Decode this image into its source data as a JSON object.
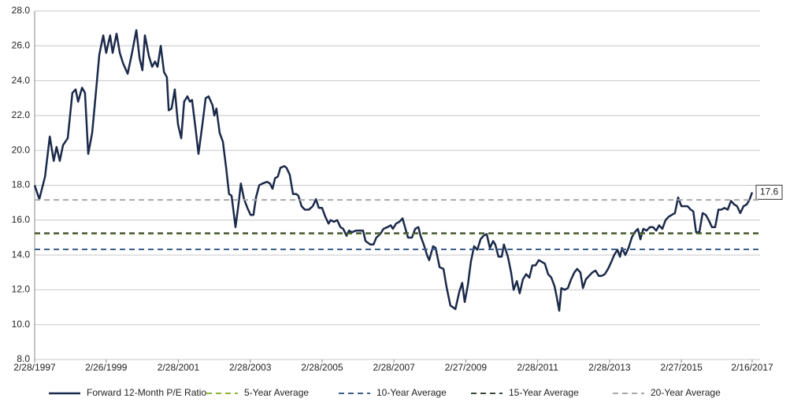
{
  "chart_data": {
    "type": "line",
    "x": [
      1997.16,
      1997.29,
      1997.45,
      1997.58,
      1997.69,
      1997.77,
      1997.86,
      1997.95,
      1998.08,
      1998.21,
      1998.3,
      1998.37,
      1998.48,
      1998.56,
      1998.65,
      1998.76,
      1998.85,
      1998.96,
      1999.07,
      1999.15,
      1999.26,
      1999.33,
      1999.44,
      1999.53,
      1999.62,
      1999.75,
      1999.86,
      1999.99,
      2000.08,
      2000.16,
      2000.23,
      2000.34,
      2000.43,
      2000.51,
      2000.58,
      2000.67,
      2000.76,
      2000.84,
      2000.89,
      2000.97,
      2001.06,
      2001.15,
      2001.24,
      2001.32,
      2001.41,
      2001.48,
      2001.54,
      2001.63,
      2001.72,
      2001.83,
      2001.92,
      2002.0,
      2002.11,
      2002.16,
      2002.22,
      2002.31,
      2002.4,
      2002.49,
      2002.57,
      2002.64,
      2002.75,
      2002.84,
      2002.9,
      2002.99,
      2003.08,
      2003.17,
      2003.25,
      2003.32,
      2003.41,
      2003.5,
      2003.63,
      2003.71,
      2003.78,
      2003.85,
      2003.93,
      2004.0,
      2004.11,
      2004.17,
      2004.26,
      2004.35,
      2004.44,
      2004.5,
      2004.59,
      2004.68,
      2004.79,
      2004.9,
      2004.99,
      2005.07,
      2005.16,
      2005.25,
      2005.34,
      2005.4,
      2005.49,
      2005.58,
      2005.67,
      2005.75,
      2005.84,
      2005.91,
      2005.99,
      2006.1,
      2006.19,
      2006.3,
      2006.37,
      2006.5,
      2006.59,
      2006.67,
      2006.78,
      2006.87,
      2006.98,
      2007.07,
      2007.13,
      2007.22,
      2007.31,
      2007.4,
      2007.48,
      2007.55,
      2007.66,
      2007.75,
      2007.84,
      2007.9,
      2007.99,
      2008.08,
      2008.14,
      2008.25,
      2008.32,
      2008.43,
      2008.54,
      2008.62,
      2008.73,
      2008.87,
      2008.98,
      2009.06,
      2009.13,
      2009.22,
      2009.3,
      2009.39,
      2009.48,
      2009.57,
      2009.65,
      2009.74,
      2009.83,
      2009.92,
      2009.98,
      2010.07,
      2010.16,
      2010.22,
      2010.33,
      2010.42,
      2010.49,
      2010.58,
      2010.66,
      2010.75,
      2010.84,
      2010.93,
      2011.01,
      2011.1,
      2011.19,
      2011.28,
      2011.36,
      2011.45,
      2011.54,
      2011.63,
      2011.69,
      2011.76,
      2011.82,
      2011.91,
      2012.0,
      2012.09,
      2012.18,
      2012.26,
      2012.35,
      2012.42,
      2012.5,
      2012.59,
      2012.68,
      2012.77,
      2012.86,
      2012.94,
      2013.03,
      2013.12,
      2013.21,
      2013.29,
      2013.38,
      2013.45,
      2013.51,
      2013.6,
      2013.69,
      2013.78,
      2013.86,
      2013.95,
      2014.02,
      2014.1,
      2014.19,
      2014.28,
      2014.37,
      2014.46,
      2014.54,
      2014.63,
      2014.72,
      2014.81,
      2014.89,
      2014.98,
      2015.07,
      2015.16,
      2015.24,
      2015.33,
      2015.42,
      2015.49,
      2015.57,
      2015.66,
      2015.75,
      2015.84,
      2015.92,
      2016.01,
      2016.1,
      2016.19,
      2016.27,
      2016.36,
      2016.45,
      2016.54,
      2016.63,
      2016.71,
      2016.8,
      2016.89,
      2016.98,
      2017.06,
      2017.13
    ],
    "series": [
      {
        "name": "Forward 12-Month P/E Ratio",
        "color": "#1b2a4a",
        "values": [
          18.0,
          17.2,
          18.5,
          20.8,
          19.4,
          20.2,
          19.4,
          20.3,
          20.7,
          23.3,
          23.5,
          22.8,
          23.6,
          23.3,
          19.8,
          21.0,
          23.0,
          25.5,
          26.6,
          25.6,
          26.6,
          25.6,
          26.7,
          25.6,
          25.0,
          24.4,
          25.5,
          26.9,
          25.3,
          24.6,
          26.6,
          25.4,
          24.8,
          25.1,
          24.8,
          26.0,
          24.5,
          24.2,
          22.3,
          22.4,
          23.5,
          21.5,
          20.7,
          22.8,
          23.1,
          22.8,
          22.9,
          21.4,
          19.8,
          21.5,
          23.0,
          23.1,
          22.6,
          22.0,
          22.4,
          21.0,
          20.5,
          19.0,
          17.5,
          17.4,
          15.6,
          17.0,
          18.1,
          17.2,
          16.7,
          16.3,
          16.3,
          17.3,
          18.0,
          18.1,
          18.2,
          18.1,
          17.8,
          18.4,
          18.5,
          19.0,
          19.1,
          19.0,
          18.6,
          17.5,
          17.5,
          17.4,
          16.8,
          16.6,
          16.6,
          16.8,
          17.2,
          16.7,
          16.7,
          16.2,
          15.8,
          16.0,
          15.9,
          16.0,
          15.6,
          15.5,
          15.1,
          15.4,
          15.3,
          15.4,
          15.4,
          15.4,
          14.8,
          14.6,
          14.6,
          15.0,
          15.2,
          15.5,
          15.6,
          15.7,
          15.5,
          15.8,
          15.9,
          16.1,
          15.5,
          15.0,
          15.0,
          15.5,
          15.6,
          15.1,
          14.6,
          14.0,
          13.7,
          14.5,
          14.4,
          13.3,
          13.2,
          12.2,
          11.1,
          10.9,
          11.9,
          12.4,
          11.3,
          12.3,
          13.6,
          14.5,
          14.3,
          14.9,
          15.1,
          15.2,
          14.4,
          14.8,
          14.6,
          13.9,
          13.9,
          14.6,
          13.9,
          13.0,
          12.0,
          12.5,
          11.8,
          12.6,
          12.9,
          12.7,
          13.4,
          13.4,
          13.7,
          13.6,
          13.5,
          12.9,
          12.7,
          12.2,
          11.6,
          10.8,
          12.1,
          12.0,
          12.1,
          12.6,
          13.0,
          13.2,
          13.0,
          12.1,
          12.6,
          12.8,
          13.0,
          13.1,
          12.8,
          12.8,
          12.9,
          13.2,
          13.6,
          14.0,
          14.3,
          13.9,
          14.4,
          14.0,
          14.4,
          15.0,
          15.3,
          15.5,
          14.9,
          15.5,
          15.4,
          15.6,
          15.6,
          15.4,
          15.7,
          15.5,
          16.0,
          16.2,
          16.3,
          16.4,
          17.3,
          16.8,
          16.8,
          16.8,
          16.6,
          16.5,
          15.3,
          15.3,
          16.4,
          16.3,
          16.0,
          15.6,
          15.6,
          16.6,
          16.6,
          16.7,
          16.6,
          17.1,
          16.9,
          16.8,
          16.4,
          16.8,
          16.9,
          17.2,
          17.6
        ]
      },
      {
        "name": "5-Year Average",
        "color": "#8db33a",
        "value": 15.22
      },
      {
        "name": "10-Year Average",
        "color": "#3b5f8c",
        "value": 14.32
      },
      {
        "name": "15-Year Average",
        "color": "#3a4a3a",
        "value": 15.25
      },
      {
        "name": "20-Year Average",
        "color": "#a9a9a9",
        "value": 17.16
      }
    ],
    "xlim": [
      1997.16,
      2017.35
    ],
    "xticks": [
      {
        "value": 1997.16,
        "label": "2/28/1997"
      },
      {
        "value": 1999.15,
        "label": "2/26/1999"
      },
      {
        "value": 2001.16,
        "label": "2/28/2001"
      },
      {
        "value": 2003.16,
        "label": "2/28/2003"
      },
      {
        "value": 2005.16,
        "label": "2/28/2005"
      },
      {
        "value": 2007.16,
        "label": "2/28/2007"
      },
      {
        "value": 2009.16,
        "label": "2/27/2009"
      },
      {
        "value": 2011.16,
        "label": "2/28/2011"
      },
      {
        "value": 2013.16,
        "label": "2/28/2013"
      },
      {
        "value": 2015.16,
        "label": "2/27/2015"
      },
      {
        "value": 2017.13,
        "label": "2/16/2017"
      }
    ],
    "ylim": [
      8,
      28
    ],
    "yticks": [
      {
        "value": 8,
        "label": "8.0"
      },
      {
        "value": 10,
        "label": "10.0"
      },
      {
        "value": 12,
        "label": "12.0"
      },
      {
        "value": 14,
        "label": "14.0"
      },
      {
        "value": 16,
        "label": "16.0"
      },
      {
        "value": 18,
        "label": "18.0"
      },
      {
        "value": 20,
        "label": "20.0"
      },
      {
        "value": 22,
        "label": "22.0"
      },
      {
        "value": 24,
        "label": "24.0"
      },
      {
        "value": 26,
        "label": "26.0"
      },
      {
        "value": 28,
        "label": "28.0"
      }
    ],
    "grid": true,
    "legend": "bottom"
  }
}
